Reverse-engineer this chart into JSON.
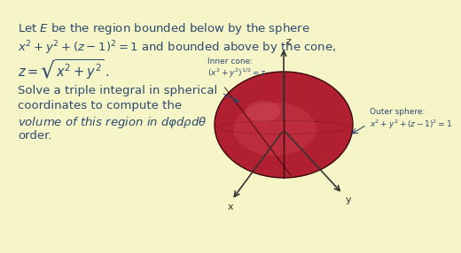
{
  "background_color": "#f5f5c8",
  "text_color": "#2c4a6e",
  "title_line1": "Let $E$ be the region bounded below by the sphere",
  "title_line2": "$x^2 + y^2 + (z-1)^2 = 1$ and bounded above by the cone,",
  "title_line3": "$z = \\sqrt{x^2 + y^2}\\,.$",
  "body_line1": "Solve a triple integral in spherical",
  "body_line2": "coordinates to compute the",
  "body_line3": "volume of this region in $d\\varphi d\\rho d\\theta$",
  "body_line4": "order.",
  "inner_cone_label": "Inner cone:\n$(x^2+y^2)^{1/2} = z$",
  "outer_sphere_label": "Outer sphere:\n$x^2+y^2+(z-1)^2=1$",
  "sphere_color_dark": "#7a1520",
  "sphere_color_mid": "#b02030",
  "sphere_color_light": "#c84050",
  "axis_color": "#333333",
  "font_size_main": 9.5,
  "font_size_label": 6.5,
  "font_size_axis": 8
}
